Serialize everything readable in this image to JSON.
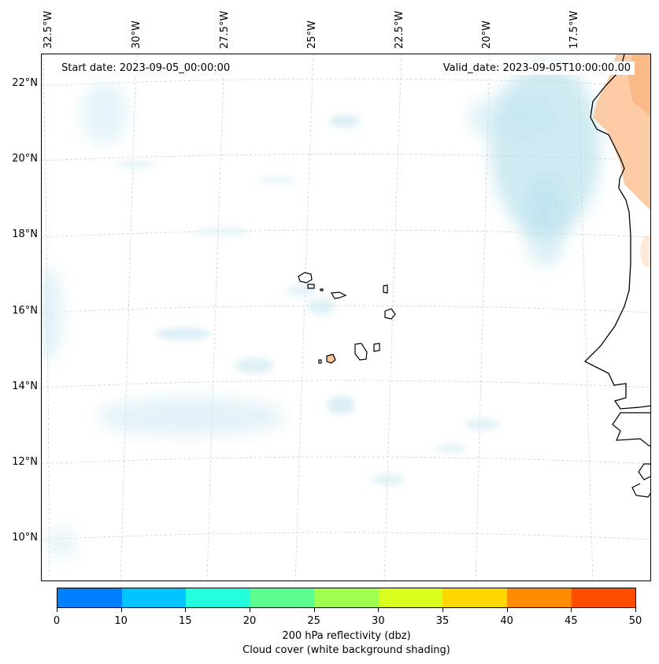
{
  "map": {
    "start_date": "Start date: 2023-09-05_00:00:00",
    "valid_date": "Valid_date: 2023-09-05T10:00:00.00",
    "lon_ticks": [
      "32.5°W",
      "30°W",
      "27.5°W",
      "25°W",
      "22.5°W",
      "20°W",
      "17.5°W"
    ],
    "lat_ticks": [
      "22°N",
      "20°N",
      "18°N",
      "16°N",
      "14°N",
      "12°N",
      "10°N"
    ],
    "land_color": "#000000",
    "gridline_color": "#bbbbbb"
  },
  "colorbar": {
    "ticks": [
      "0",
      "10",
      "15",
      "20",
      "25",
      "30",
      "35",
      "40",
      "45",
      "50"
    ],
    "colors": [
      "#0080ff",
      "#00c4ff",
      "#22ffdd",
      "#5cff8f",
      "#9cff50",
      "#d8ff1e",
      "#ffd700",
      "#ff8c00",
      "#ff4d00"
    ],
    "label_line1": "200 hPa reflectivity (dbz)",
    "label_line2": "Cloud cover (white background shading)"
  }
}
